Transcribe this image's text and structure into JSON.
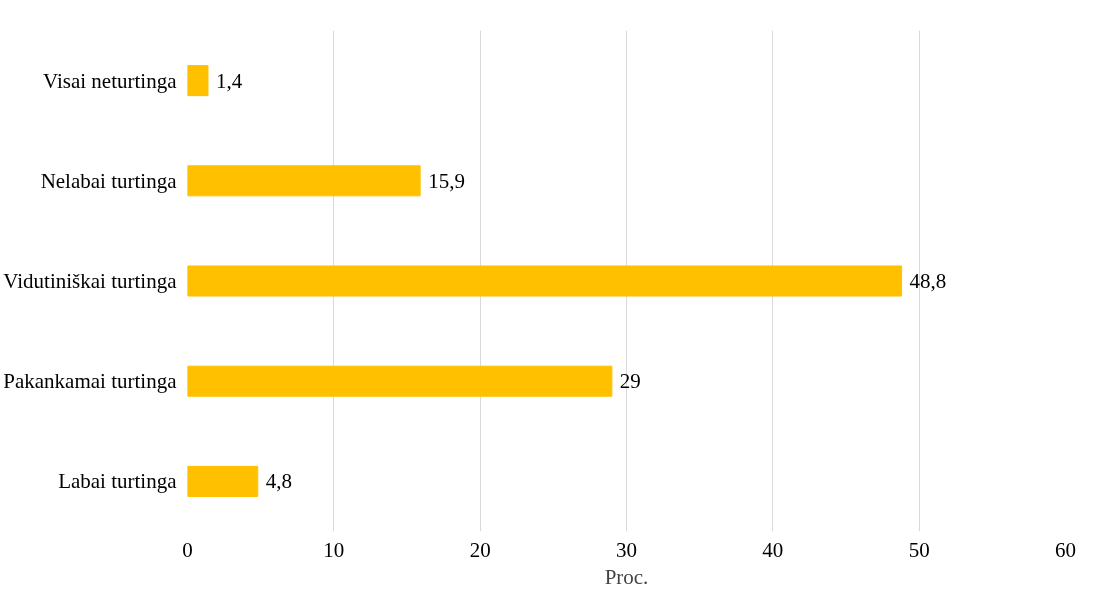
{
  "chart_data": {
    "type": "bar",
    "orientation": "horizontal",
    "xlabel": "Proc.",
    "categories": [
      "Visai neturtinga",
      "Nelabai turtinga",
      "Vidutiniškai turtinga",
      "Pakankamai turtinga",
      "Labai turtinga"
    ],
    "values": [
      1.4,
      15.9,
      48.8,
      29,
      4.8
    ],
    "value_labels": [
      "1,4",
      "15,9",
      "48,8",
      "29",
      "4,8"
    ],
    "color": "#ffc000",
    "xlim": [
      0,
      60
    ],
    "xticks": [
      0,
      10,
      20,
      30,
      40,
      50,
      60
    ],
    "grid": "x"
  }
}
